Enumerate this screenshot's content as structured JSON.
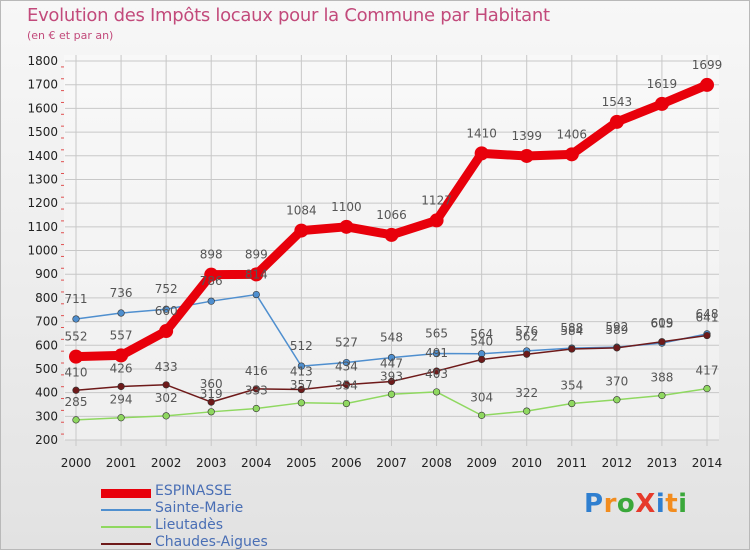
{
  "chart_data": {
    "type": "line",
    "title": "Evolution des Impôts locaux pour la Commune par Habitant",
    "subtitle": "(en € et par an)",
    "xlabel": "",
    "ylabel": "",
    "x": [
      "2000",
      "2001",
      "2002",
      "2003",
      "2004",
      "2005",
      "2006",
      "2007",
      "2008",
      "2009",
      "2010",
      "2011",
      "2012",
      "2013",
      "2014"
    ],
    "ylim": [
      200,
      1800
    ],
    "yticks": [
      200,
      300,
      400,
      500,
      600,
      700,
      800,
      900,
      1000,
      1100,
      1200,
      1300,
      1400,
      1500,
      1600,
      1700,
      1800
    ],
    "grid": true,
    "legend_position": "bottom-left",
    "series": [
      {
        "name": "ESPINASSE",
        "color": "#e8000b",
        "values": [
          552,
          557,
          660,
          898,
          899,
          1084,
          1100,
          1066,
          1127,
          1410,
          1399,
          1406,
          1543,
          1619,
          1699
        ]
      },
      {
        "name": "Sainte-Marie",
        "color": "#4f8fcf",
        "values": [
          711,
          736,
          752,
          786,
          814,
          512,
          527,
          548,
          565,
          564,
          576,
          588,
          592,
          609,
          648
        ]
      },
      {
        "name": "Lieutadès",
        "color": "#8fd860",
        "values": [
          285,
          294,
          302,
          319,
          333,
          357,
          354,
          393,
          403,
          304,
          322,
          354,
          370,
          388,
          417
        ]
      },
      {
        "name": "Chaudes-Aigues",
        "color": "#6e1a1a",
        "values": [
          410,
          426,
          433,
          360,
          416,
          413,
          434,
          447,
          491,
          540,
          562,
          584,
          589,
          615,
          641
        ]
      }
    ]
  },
  "brand": {
    "name": "ProXiti",
    "letters": [
      {
        "char": "P",
        "color": "#2f7fd0"
      },
      {
        "char": "r",
        "color": "#f28c1e"
      },
      {
        "char": "o",
        "color": "#3aa83a"
      },
      {
        "char": "X",
        "color": "#e63a2b"
      },
      {
        "char": "i",
        "color": "#2f7fd0"
      },
      {
        "char": "t",
        "color": "#f28c1e"
      },
      {
        "char": "i",
        "color": "#3aa83a"
      }
    ]
  }
}
